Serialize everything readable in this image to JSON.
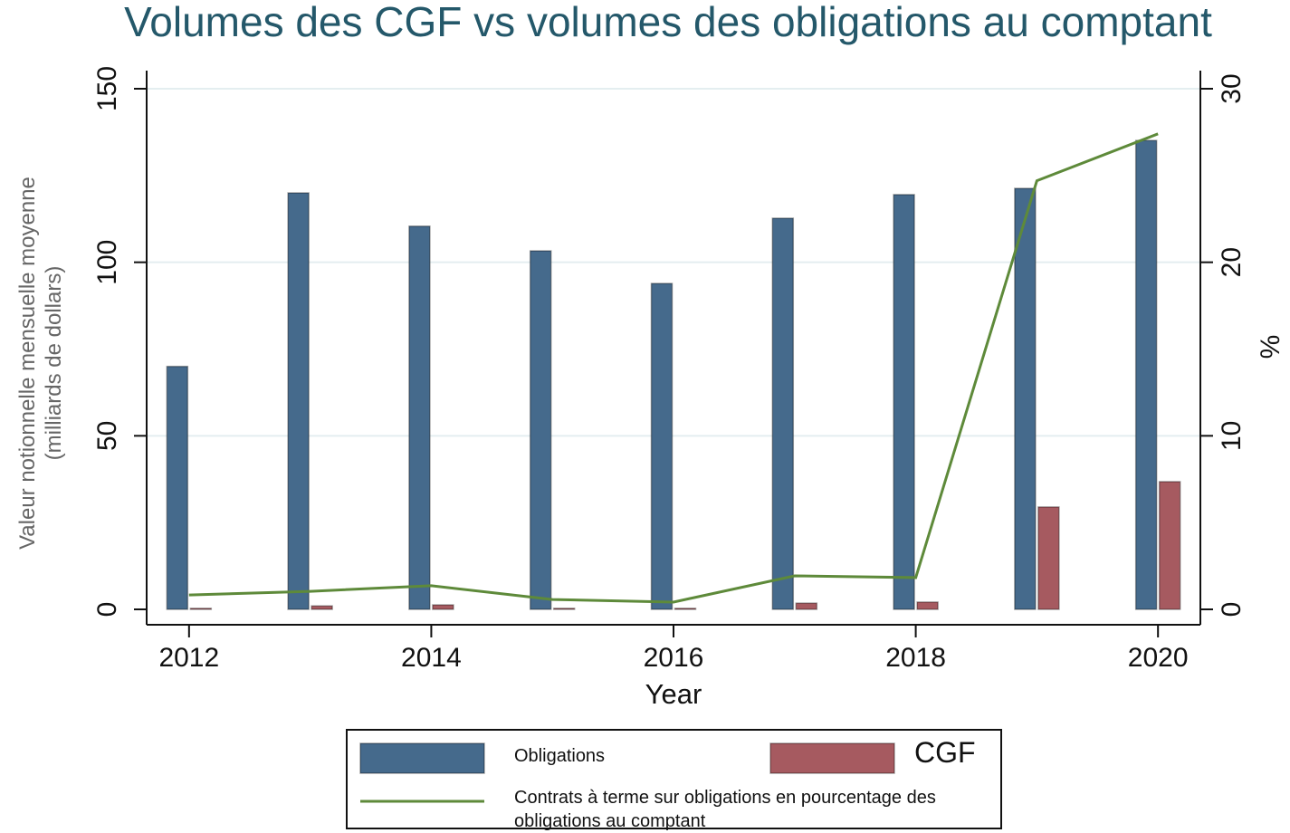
{
  "chart_data": {
    "type": "bar",
    "title": "Volumes des CGF vs volumes des obligations au comptant",
    "xlabel": "Year",
    "ylabel": "Valeur notionnelle mensuelle moyenne (milliards de dollars)",
    "y2label": "%",
    "x": [
      2012,
      2013,
      2014,
      2015,
      2016,
      2017,
      2018,
      2019,
      2020
    ],
    "series": [
      {
        "name": "Obligations",
        "type": "bar",
        "color": "#456a8c",
        "values": [
          70,
          120,
          110.4,
          103.3,
          93.9,
          112.7,
          119.5,
          121.3,
          135.1
        ]
      },
      {
        "name": "CGF",
        "type": "bar",
        "color": "#a65a60",
        "values": [
          0.3,
          1,
          1.3,
          0.3,
          0.3,
          1.8,
          2.1,
          29.5,
          36.8
        ]
      },
      {
        "name": "Contrats à terme sur obligations en pourcentage des obligations au comptant",
        "type": "line",
        "axis": "y2",
        "color": "#5e8a3a",
        "values": [
          0.83,
          1.04,
          1.36,
          0.57,
          0.42,
          1.93,
          1.83,
          24.7,
          27.4
        ]
      }
    ],
    "xlim": [
      2011.65,
      2020.35
    ],
    "xticks": [
      2012,
      2014,
      2016,
      2018,
      2020
    ],
    "ylim": [
      0,
      150
    ],
    "yticks": [
      0,
      50,
      100,
      150
    ],
    "y2lim": [
      0,
      30
    ],
    "y2ticks": [
      0,
      10,
      20,
      30
    ],
    "grid": true
  }
}
